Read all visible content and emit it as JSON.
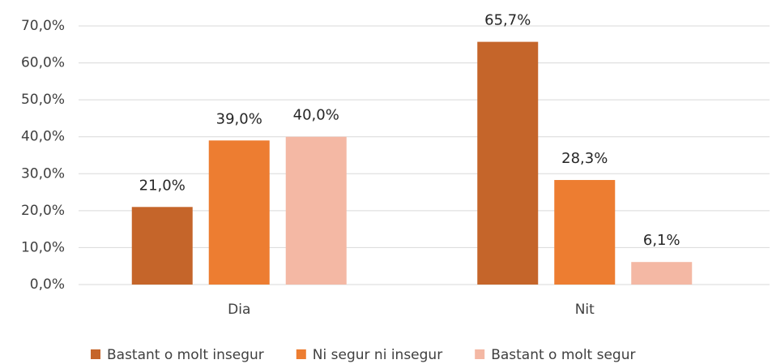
{
  "chart_data": {
    "type": "bar",
    "categories": [
      "Dia",
      "Nit"
    ],
    "series": [
      {
        "name": "Bastant o molt insegur",
        "color": "#c5652a",
        "values": [
          21.0,
          65.7
        ],
        "value_labels": [
          "21,0%",
          "65,7%"
        ]
      },
      {
        "name": "Ni segur ni insegur",
        "color": "#ed7d31",
        "values": [
          39.0,
          28.3
        ],
        "value_labels": [
          "39,0%",
          "28,3%"
        ]
      },
      {
        "name": "Bastant o molt segur",
        "color": "#f4b8a4",
        "values": [
          40.0,
          6.1
        ],
        "value_labels": [
          "40,0%",
          "6,1%"
        ]
      }
    ],
    "ylim": [
      0,
      70
    ],
    "yticks": [
      {
        "value": 0,
        "label": "0,0%"
      },
      {
        "value": 10,
        "label": "10,0%"
      },
      {
        "value": 20,
        "label": "20,0%"
      },
      {
        "value": 30,
        "label": "30,0%"
      },
      {
        "value": 40,
        "label": "40,0%"
      },
      {
        "value": 50,
        "label": "50,0%"
      },
      {
        "value": 60,
        "label": "60,0%"
      },
      {
        "value": 70,
        "label": "70,0%"
      }
    ],
    "grid": true,
    "legend": "bottom"
  }
}
